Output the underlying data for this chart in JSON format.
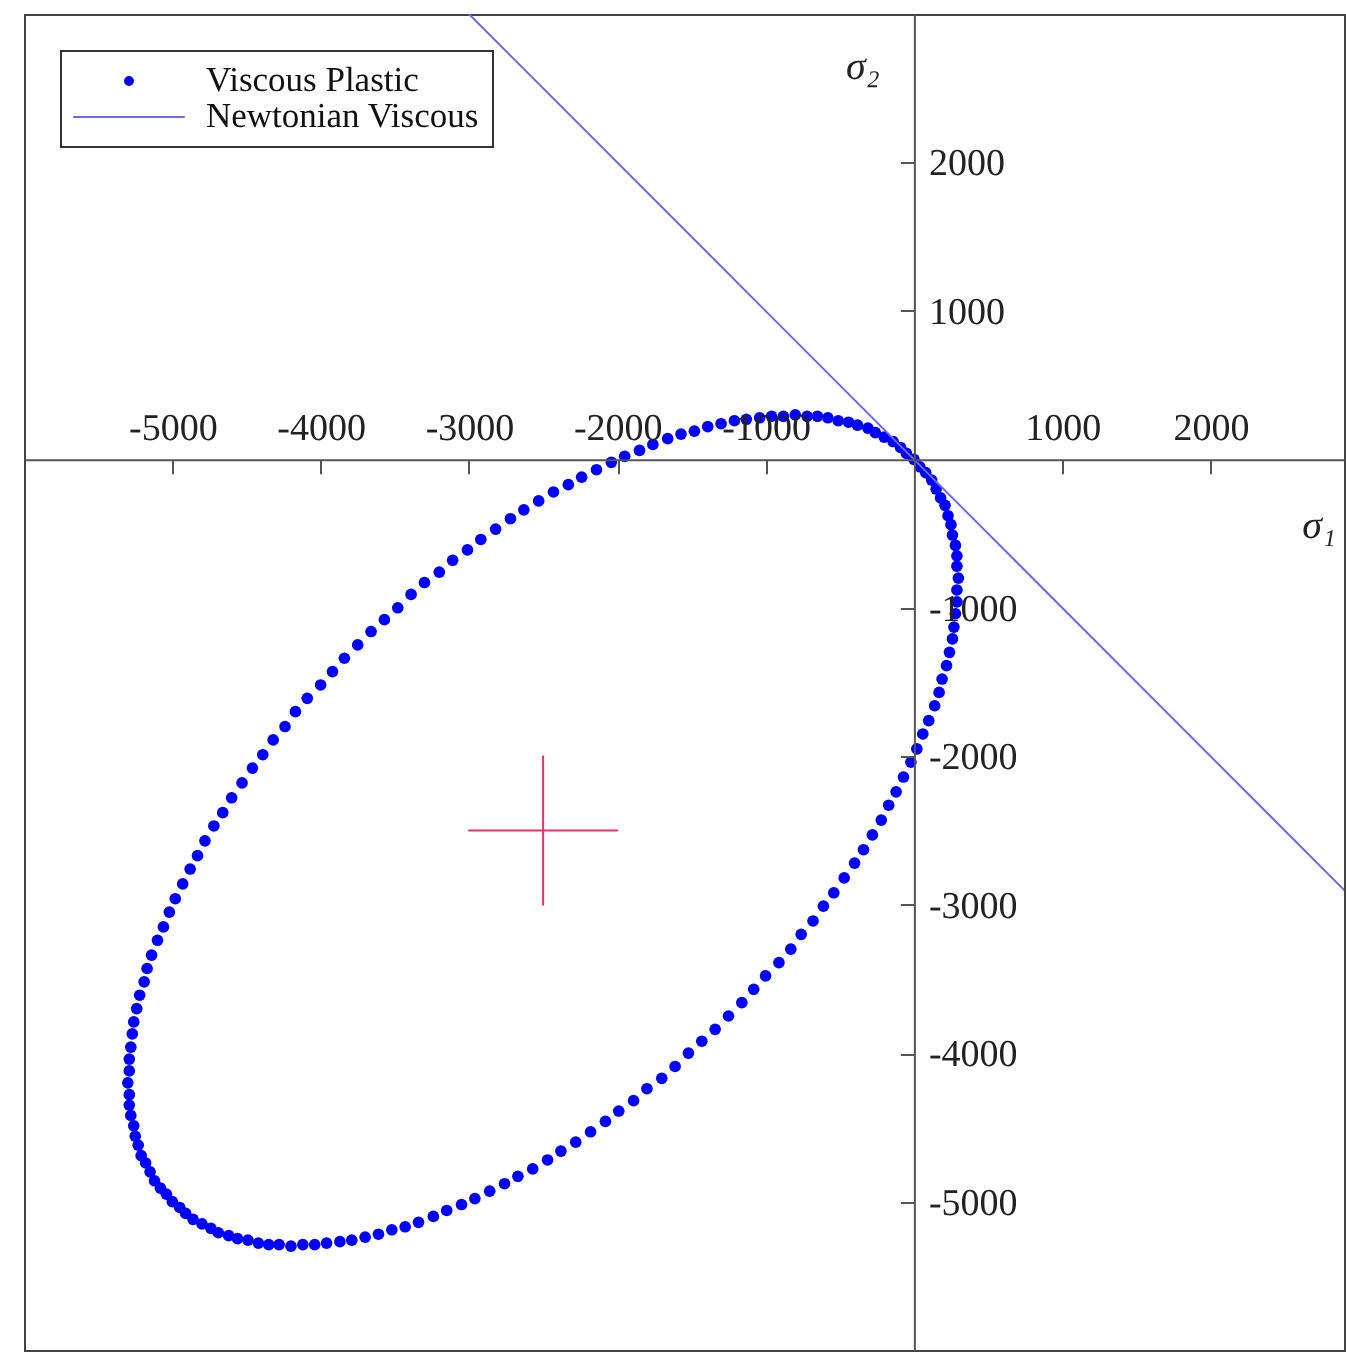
{
  "chart_data": {
    "type": "scatter",
    "xlabel": "σ₁",
    "ylabel": "σ₂",
    "xlim": [
      -6000,
      2900
    ],
    "ylim": [
      -6000,
      3000
    ],
    "xticks": [
      -5000,
      -4000,
      -3000,
      -2000,
      -1000,
      1000,
      2000
    ],
    "yticks": [
      2000,
      1000,
      -1000,
      -2000,
      -3000,
      -4000,
      -5000
    ],
    "legend": "top left",
    "series": [
      {
        "name": "Viscous Plastic",
        "marker": "circle",
        "color": "#0000ff",
        "x": [
          0,
          40,
          80,
          120,
          150,
          180,
          210,
          230,
          250,
          260,
          280,
          290,
          290,
          300,
          290,
          290,
          280,
          270,
          260,
          240,
          220,
          190,
          170,
          140,
          100,
          60,
          20,
          -20,
          -70,
          -120,
          -170,
          -220,
          -280,
          -340,
          -400,
          -470,
          -540,
          -610,
          -680,
          -760,
          -830,
          -910,
          -1000,
          -1080,
          -1160,
          -1250,
          -1340,
          -1430,
          -1520,
          -1610,
          -1700,
          -1800,
          -1890,
          -1990,
          -2080,
          -2180,
          -2280,
          -2380,
          -2470,
          -2570,
          -2670,
          -2760,
          -2860,
          -2960,
          -3050,
          -3150,
          -3240,
          -3340,
          -3430,
          -3520,
          -3610,
          -3700,
          -3790,
          -3870,
          -3960,
          -4040,
          -4120,
          -4200,
          -4280,
          -4350,
          -4420,
          -4490,
          -4560,
          -4620,
          -4690,
          -4740,
          -4800,
          -4860,
          -4910,
          -4950,
          -5000,
          -5040,
          -5080,
          -5120,
          -5150,
          -5180,
          -5210,
          -5230,
          -5250,
          -5260,
          -5280,
          -5290,
          -5290,
          -5300,
          -5290,
          -5290,
          -5280,
          -5270,
          -5260,
          -5240,
          -5220,
          -5190,
          -5170,
          -5140,
          -5100,
          -5060,
          -5020,
          -4980,
          -4930,
          -4880,
          -4830,
          -4780,
          -4720,
          -4660,
          -4600,
          -4530,
          -4460,
          -4390,
          -4320,
          -4240,
          -4170,
          -4090,
          -4000,
          -3920,
          -3840,
          -3750,
          -3660,
          -3570,
          -3480,
          -3390,
          -3300,
          -3200,
          -3110,
          -3010,
          -2920,
          -2820,
          -2720,
          -2630,
          -2530,
          -2430,
          -2330,
          -2240,
          -2140,
          -2040,
          -1950,
          -1850,
          -1760,
          -1660,
          -1570,
          -1480,
          -1390,
          -1300,
          -1210,
          -1130,
          -1040,
          -960,
          -880,
          -800,
          -720,
          -650,
          -580,
          -510,
          -440,
          -380,
          -310,
          -260,
          -200,
          -140,
          -90,
          -50
        ],
        "values": [
          0,
          -50,
          -90,
          -140,
          -200,
          -260,
          -310,
          -380,
          -440,
          -510,
          -580,
          -650,
          -720,
          -800,
          -880,
          -960,
          -1040,
          -1130,
          -1210,
          -1300,
          -1390,
          -1480,
          -1570,
          -1660,
          -1760,
          -1850,
          -1950,
          -2040,
          -2140,
          -2240,
          -2330,
          -2430,
          -2530,
          -2630,
          -2720,
          -2820,
          -2920,
          -3010,
          -3110,
          -3200,
          -3300,
          -3390,
          -3480,
          -3570,
          -3660,
          -3750,
          -3840,
          -3920,
          -4000,
          -4090,
          -4170,
          -4240,
          -4320,
          -4390,
          -4460,
          -4530,
          -4600,
          -4660,
          -4720,
          -4780,
          -4830,
          -4880,
          -4930,
          -4980,
          -5020,
          -5060,
          -5100,
          -5140,
          -5170,
          -5190,
          -5220,
          -5240,
          -5260,
          -5270,
          -5280,
          -5290,
          -5290,
          -5300,
          -5290,
          -5290,
          -5280,
          -5260,
          -5250,
          -5230,
          -5210,
          -5180,
          -5150,
          -5120,
          -5080,
          -5040,
          -5000,
          -4950,
          -4910,
          -4860,
          -4800,
          -4740,
          -4690,
          -4620,
          -4560,
          -4490,
          -4420,
          -4350,
          -4280,
          -4200,
          -4120,
          -4040,
          -3960,
          -3870,
          -3790,
          -3700,
          -3610,
          -3520,
          -3430,
          -3340,
          -3240,
          -3150,
          -3050,
          -2960,
          -2860,
          -2760,
          -2670,
          -2570,
          -2470,
          -2380,
          -2280,
          -2180,
          -2080,
          -1990,
          -1890,
          -1800,
          -1700,
          -1610,
          -1520,
          -1430,
          -1340,
          -1250,
          -1160,
          -1080,
          -1000,
          -910,
          -830,
          -760,
          -680,
          -610,
          -540,
          -470,
          -400,
          -340,
          -280,
          -220,
          -170,
          -120,
          -70,
          -20,
          20,
          60,
          100,
          140,
          170,
          190,
          220,
          240,
          260,
          270,
          280,
          290,
          290,
          300,
          290,
          290,
          280,
          260,
          250,
          230,
          210,
          180,
          150,
          120,
          80,
          40
        ]
      },
      {
        "name": "Newtonian Viscous",
        "type": "line",
        "color": "#6b6be6",
        "x": [
          -3000,
          2900
        ],
        "values": [
          3000,
          -2900
        ]
      },
      {
        "type": "line",
        "color": "#f0306a",
        "x": [
          -3000,
          -2000
        ],
        "values": [
          -2500,
          -2500
        ]
      },
      {
        "type": "line",
        "color": "#f0306a",
        "x": [
          -2500,
          -2500
        ],
        "values": [
          -3000,
          -2000
        ]
      }
    ]
  }
}
